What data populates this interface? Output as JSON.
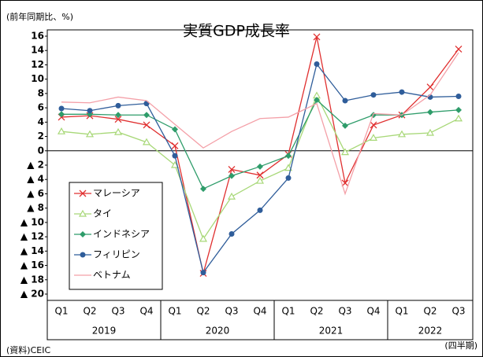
{
  "chart_data": {
    "type": "line",
    "title": "実質GDP成長率",
    "y_label": "(前年同期比、%)",
    "x_label": "(四半期)",
    "source": "(資料)CEIC",
    "categories": [
      "Q1",
      "Q2",
      "Q3",
      "Q4",
      "Q1",
      "Q2",
      "Q3",
      "Q4",
      "Q1",
      "Q2",
      "Q3",
      "Q4",
      "Q1",
      "Q2",
      "Q3"
    ],
    "years": [
      "2019",
      "2020",
      "2021",
      "2022"
    ],
    "ylim": [
      -20,
      16
    ],
    "yticks": [
      16,
      14,
      12,
      10,
      8,
      6,
      4,
      2,
      0,
      {
        "value": -2,
        "label": "▲ 2"
      },
      {
        "value": -4,
        "label": "▲ 4"
      },
      {
        "value": -6,
        "label": "▲ 6"
      },
      {
        "value": -8,
        "label": "▲ 8"
      },
      {
        "value": -10,
        "label": "▲ 10"
      },
      {
        "value": -12,
        "label": "▲ 12"
      },
      {
        "value": -14,
        "label": "▲ 14"
      },
      {
        "value": -16,
        "label": "▲ 16"
      },
      {
        "value": -18,
        "label": "▲ 18"
      },
      {
        "value": -20,
        "label": "▲ 20"
      }
    ],
    "legend": "left",
    "series": [
      {
        "name": "マレーシア",
        "color": "#e03030",
        "marker": "x",
        "values": [
          4.7,
          4.9,
          4.4,
          3.6,
          0.7,
          -17.1,
          -2.6,
          -3.4,
          -0.5,
          15.9,
          -4.5,
          3.6,
          5.0,
          8.9,
          14.2
        ]
      },
      {
        "name": "タイ",
        "color": "#a8d878",
        "marker": "triangle",
        "values": [
          2.7,
          2.3,
          2.6,
          1.2,
          -2.0,
          -12.3,
          -6.4,
          -4.2,
          -2.4,
          7.7,
          -0.2,
          1.8,
          2.3,
          2.5,
          4.5
        ]
      },
      {
        "name": "インドネシア",
        "color": "#2e9c6a",
        "marker": "diamond",
        "values": [
          5.1,
          5.1,
          5.0,
          5.0,
          3.0,
          -5.3,
          -3.5,
          -2.2,
          -0.7,
          7.1,
          3.5,
          5.0,
          5.0,
          5.4,
          5.7
        ]
      },
      {
        "name": "フィリピン",
        "color": "#2f5d9a",
        "marker": "circle",
        "values": [
          5.9,
          5.6,
          6.3,
          6.6,
          -0.7,
          -17.0,
          -11.6,
          -8.3,
          -3.8,
          12.1,
          7.0,
          7.8,
          8.2,
          7.5,
          7.6
        ]
      },
      {
        "name": "ベトナム",
        "color": "#f4a0a8",
        "marker": "none",
        "values": [
          6.8,
          6.7,
          7.5,
          7.0,
          3.7,
          0.4,
          2.7,
          4.5,
          4.7,
          6.6,
          -6.0,
          5.2,
          5.0,
          7.8,
          13.7
        ]
      }
    ]
  }
}
